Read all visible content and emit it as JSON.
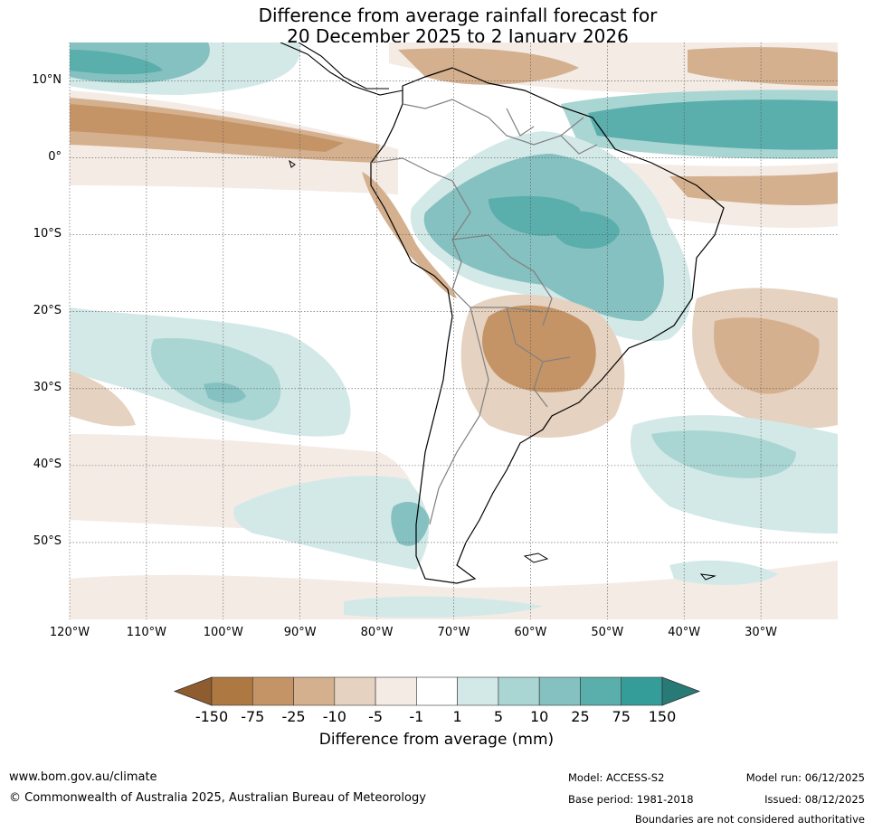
{
  "title": {
    "line1": "Difference from average rainfall forecast for",
    "line2": "20 December 2025 to 2 January 2026"
  },
  "map": {
    "lat_labels": [
      "10°N",
      "0°",
      "10°S",
      "20°S",
      "30°S",
      "40°S",
      "50°S"
    ],
    "lon_labels": [
      "120°W",
      "110°W",
      "100°W",
      "90°W",
      "80°W",
      "70°W",
      "60°W",
      "50°W",
      "40°W",
      "30°W"
    ],
    "lat_values": [
      10,
      0,
      -10,
      -20,
      -30,
      -40,
      -50
    ],
    "lon_values": [
      -120,
      -110,
      -100,
      -90,
      -80,
      -70,
      -60,
      -50,
      -40,
      -30
    ],
    "extent": {
      "lon_min": -120,
      "lon_max": -20,
      "lat_min": -60,
      "lat_max": 15
    }
  },
  "colorbar": {
    "ticks": [
      "-150",
      "-75",
      "-25",
      "-10",
      "-5",
      "-1",
      "1",
      "5",
      "10",
      "25",
      "75",
      "150"
    ],
    "colors": [
      "#8e5c2e",
      "#ad7841",
      "#c49466",
      "#d4b08f",
      "#e6d2c0",
      "#f4ebe5",
      "#ffffff",
      "#d3e9e8",
      "#a9d5d3",
      "#85c1c0",
      "#5aaeac",
      "#359d99",
      "#287a77"
    ],
    "label": "Difference from average (mm)"
  },
  "footer": {
    "url": "www.bom.gov.au/climate",
    "copyright": "© Commonwealth of Australia 2025, Australian Bureau of Meteorology",
    "model": "Model: ACCESS-S2",
    "base_period": "Base period: 1981-2018",
    "model_run": "Model run: 06/12/2025",
    "issued": "Issued: 08/12/2025",
    "boundaries": "Boundaries are not considered authoritative"
  }
}
